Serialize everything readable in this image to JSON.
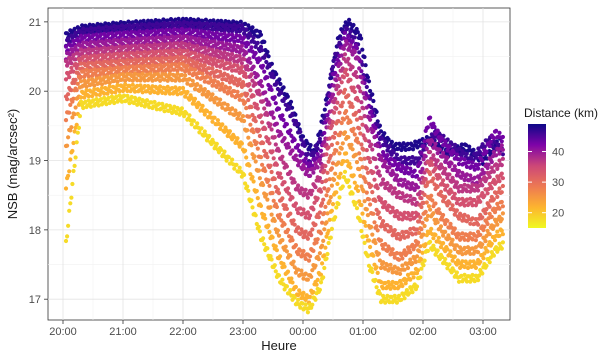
{
  "chart_data": {
    "type": "scatter",
    "xlabel": "Heure",
    "ylabel": "NSB (mag/arcsec²)",
    "x_ticks": [
      "20:00",
      "21:00",
      "22:00",
      "23:00",
      "00:00",
      "01:00",
      "02:00",
      "03:00"
    ],
    "x_tick_hours": [
      20,
      21,
      22,
      23,
      24,
      25,
      26,
      27
    ],
    "xlim_hours": [
      19.75,
      27.45
    ],
    "y_ticks": [
      17,
      18,
      19,
      20,
      21
    ],
    "ylim": [
      16.7,
      21.2
    ],
    "grid": true,
    "legend": {
      "title": "Distance (km)",
      "position": "right",
      "ticks": [
        20,
        30,
        40
      ],
      "range": [
        15,
        49
      ],
      "colormap": "plasma"
    },
    "series_note_hours": "x values in decimal hours after 00:00 of evening day (24 = 00:00, 27 = 03:00)",
    "curves": [
      {
        "distance": 48,
        "points": [
          [
            20.05,
            20.8
          ],
          [
            20.3,
            20.9
          ],
          [
            21,
            20.95
          ],
          [
            22,
            21.0
          ],
          [
            23,
            20.95
          ],
          [
            23.3,
            20.8
          ],
          [
            23.5,
            20.3
          ],
          [
            23.8,
            19.8
          ],
          [
            24.0,
            19.3
          ],
          [
            24.2,
            19.1
          ],
          [
            24.4,
            19.9
          ],
          [
            24.6,
            20.8
          ],
          [
            24.75,
            21.0
          ],
          [
            24.95,
            20.8
          ],
          [
            25.1,
            20.1
          ],
          [
            25.3,
            19.4
          ],
          [
            25.5,
            19.2
          ],
          [
            25.8,
            19.2
          ],
          [
            26.1,
            19.3
          ],
          [
            26.4,
            19.1
          ],
          [
            26.7,
            19.2
          ],
          [
            27.0,
            19.0
          ],
          [
            27.3,
            19.3
          ]
        ]
      },
      {
        "distance": 46,
        "points": [
          [
            20.05,
            20.7
          ],
          [
            20.3,
            20.85
          ],
          [
            21,
            20.9
          ],
          [
            22,
            20.95
          ],
          [
            23,
            20.9
          ],
          [
            23.3,
            20.6
          ],
          [
            23.6,
            20.0
          ],
          [
            23.9,
            19.5
          ],
          [
            24.1,
            19.0
          ],
          [
            24.3,
            19.3
          ],
          [
            24.5,
            20.4
          ],
          [
            24.7,
            20.9
          ],
          [
            24.9,
            20.7
          ],
          [
            25.1,
            19.9
          ],
          [
            25.3,
            19.3
          ],
          [
            25.6,
            19.0
          ],
          [
            25.9,
            19.0
          ],
          [
            26.2,
            19.4
          ],
          [
            26.5,
            19.2
          ],
          [
            26.8,
            19.0
          ],
          [
            27.1,
            19.3
          ],
          [
            27.35,
            19.1
          ]
        ]
      },
      {
        "distance": 43,
        "points": [
          [
            20.05,
            20.6
          ],
          [
            20.3,
            20.75
          ],
          [
            21,
            20.8
          ],
          [
            22,
            20.85
          ],
          [
            23,
            20.75
          ],
          [
            23.3,
            20.4
          ],
          [
            23.6,
            19.7
          ],
          [
            23.9,
            19.2
          ],
          [
            24.1,
            18.9
          ],
          [
            24.3,
            19.1
          ],
          [
            24.5,
            20.2
          ],
          [
            24.7,
            20.8
          ],
          [
            24.9,
            20.6
          ],
          [
            25.1,
            19.8
          ],
          [
            25.3,
            19.1
          ],
          [
            25.6,
            18.9
          ],
          [
            25.9,
            18.8
          ],
          [
            26.1,
            19.6
          ],
          [
            26.3,
            19.3
          ],
          [
            26.6,
            19.0
          ],
          [
            26.9,
            18.9
          ],
          [
            27.2,
            19.4
          ],
          [
            27.35,
            19.3
          ]
        ]
      },
      {
        "distance": 40,
        "points": [
          [
            20.05,
            20.5
          ],
          [
            20.3,
            20.65
          ],
          [
            21,
            20.7
          ],
          [
            22,
            20.75
          ],
          [
            23,
            20.6
          ],
          [
            23.3,
            20.1
          ],
          [
            23.6,
            19.4
          ],
          [
            23.9,
            19.0
          ],
          [
            24.1,
            18.8
          ],
          [
            24.3,
            19.0
          ],
          [
            24.5,
            20.0
          ],
          [
            24.7,
            20.7
          ],
          [
            24.9,
            20.5
          ],
          [
            25.1,
            19.6
          ],
          [
            25.3,
            19.0
          ],
          [
            25.6,
            18.7
          ],
          [
            25.9,
            18.6
          ],
          [
            26.1,
            19.3
          ],
          [
            26.3,
            19.1
          ],
          [
            26.6,
            18.8
          ],
          [
            26.9,
            18.7
          ],
          [
            27.2,
            19.1
          ],
          [
            27.35,
            19.2
          ]
        ]
      },
      {
        "distance": 37,
        "points": [
          [
            20.05,
            20.4
          ],
          [
            20.3,
            20.55
          ],
          [
            21,
            20.6
          ],
          [
            22,
            20.65
          ],
          [
            23,
            20.45
          ],
          [
            23.3,
            19.9
          ],
          [
            23.6,
            19.1
          ],
          [
            23.9,
            18.6
          ],
          [
            24.1,
            18.5
          ],
          [
            24.3,
            18.8
          ],
          [
            24.5,
            19.8
          ],
          [
            24.7,
            20.5
          ],
          [
            24.9,
            20.2
          ],
          [
            25.1,
            19.3
          ],
          [
            25.3,
            18.7
          ],
          [
            25.6,
            18.5
          ],
          [
            25.9,
            18.4
          ],
          [
            26.1,
            19.1
          ],
          [
            26.3,
            18.9
          ],
          [
            26.6,
            18.6
          ],
          [
            26.9,
            18.6
          ],
          [
            27.2,
            18.9
          ],
          [
            27.35,
            19.0
          ]
        ]
      },
      {
        "distance": 34,
        "points": [
          [
            20.05,
            20.2
          ],
          [
            20.3,
            20.45
          ],
          [
            21,
            20.5
          ],
          [
            22,
            20.55
          ],
          [
            23,
            20.3
          ],
          [
            23.3,
            19.6
          ],
          [
            23.6,
            18.8
          ],
          [
            23.9,
            18.3
          ],
          [
            24.1,
            18.2
          ],
          [
            24.3,
            18.6
          ],
          [
            24.5,
            19.6
          ],
          [
            24.7,
            20.3
          ],
          [
            24.9,
            19.9
          ],
          [
            25.1,
            19.0
          ],
          [
            25.3,
            18.4
          ],
          [
            25.6,
            18.2
          ],
          [
            25.9,
            18.2
          ],
          [
            26.1,
            19.0
          ],
          [
            26.3,
            18.7
          ],
          [
            26.6,
            18.4
          ],
          [
            26.9,
            18.4
          ],
          [
            27.2,
            18.7
          ],
          [
            27.35,
            18.8
          ]
        ]
      },
      {
        "distance": 31,
        "points": [
          [
            20.05,
            19.9
          ],
          [
            20.3,
            20.35
          ],
          [
            21,
            20.4
          ],
          [
            22,
            20.45
          ],
          [
            23,
            20.1
          ],
          [
            23.3,
            19.3
          ],
          [
            23.6,
            18.5
          ],
          [
            23.9,
            18.0
          ],
          [
            24.1,
            17.9
          ],
          [
            24.3,
            18.3
          ],
          [
            24.5,
            19.3
          ],
          [
            24.7,
            20.0
          ],
          [
            24.9,
            19.6
          ],
          [
            25.1,
            18.7
          ],
          [
            25.3,
            18.1
          ],
          [
            25.6,
            17.9
          ],
          [
            25.9,
            18.0
          ],
          [
            26.1,
            18.8
          ],
          [
            26.3,
            18.5
          ],
          [
            26.6,
            18.2
          ],
          [
            26.9,
            18.1
          ],
          [
            27.2,
            18.5
          ],
          [
            27.35,
            18.6
          ]
        ]
      },
      {
        "distance": 28,
        "points": [
          [
            20.05,
            19.6
          ],
          [
            20.3,
            20.25
          ],
          [
            21,
            20.3
          ],
          [
            22,
            20.35
          ],
          [
            23,
            19.9
          ],
          [
            23.3,
            19.0
          ],
          [
            23.6,
            18.2
          ],
          [
            23.9,
            17.7
          ],
          [
            24.1,
            17.6
          ],
          [
            24.3,
            18.0
          ],
          [
            24.5,
            19.0
          ],
          [
            24.7,
            19.7
          ],
          [
            24.9,
            19.3
          ],
          [
            25.1,
            18.4
          ],
          [
            25.3,
            17.8
          ],
          [
            25.6,
            17.6
          ],
          [
            25.9,
            17.8
          ],
          [
            26.1,
            18.5
          ],
          [
            26.3,
            18.2
          ],
          [
            26.6,
            17.9
          ],
          [
            26.9,
            17.9
          ],
          [
            27.2,
            18.3
          ],
          [
            27.35,
            18.4
          ]
        ]
      },
      {
        "distance": 25,
        "points": [
          [
            20.05,
            19.2
          ],
          [
            20.3,
            20.1
          ],
          [
            21,
            20.2
          ],
          [
            22,
            20.2
          ],
          [
            23,
            19.6
          ],
          [
            23.3,
            18.7
          ],
          [
            23.6,
            17.9
          ],
          [
            23.9,
            17.4
          ],
          [
            24.1,
            17.3
          ],
          [
            24.3,
            17.7
          ],
          [
            24.5,
            18.7
          ],
          [
            24.7,
            19.4
          ],
          [
            24.9,
            19.0
          ],
          [
            25.1,
            18.1
          ],
          [
            25.3,
            17.5
          ],
          [
            25.6,
            17.4
          ],
          [
            25.9,
            17.6
          ],
          [
            26.1,
            18.3
          ],
          [
            26.3,
            18.0
          ],
          [
            26.6,
            17.7
          ],
          [
            26.9,
            17.7
          ],
          [
            27.2,
            18.1
          ],
          [
            27.35,
            18.2
          ]
        ]
      },
      {
        "distance": 22,
        "points": [
          [
            20.05,
            18.6
          ],
          [
            20.3,
            19.95
          ],
          [
            21,
            20.05
          ],
          [
            22,
            20.0
          ],
          [
            23,
            19.2
          ],
          [
            23.3,
            18.3
          ],
          [
            23.6,
            17.6
          ],
          [
            23.9,
            17.1
          ],
          [
            24.1,
            17.0
          ],
          [
            24.3,
            17.4
          ],
          [
            24.5,
            18.4
          ],
          [
            24.7,
            19.1
          ],
          [
            24.9,
            18.6
          ],
          [
            25.1,
            17.8
          ],
          [
            25.3,
            17.2
          ],
          [
            25.6,
            17.2
          ],
          [
            25.9,
            17.4
          ],
          [
            26.1,
            18.0
          ],
          [
            26.3,
            17.8
          ],
          [
            26.6,
            17.5
          ],
          [
            26.9,
            17.5
          ],
          [
            27.2,
            17.9
          ],
          [
            27.35,
            18.0
          ]
        ]
      },
      {
        "distance": 18,
        "points": [
          [
            20.05,
            17.8
          ],
          [
            20.3,
            19.8
          ],
          [
            21,
            19.9
          ],
          [
            22,
            19.7
          ],
          [
            23,
            18.8
          ],
          [
            23.3,
            17.9
          ],
          [
            23.6,
            17.3
          ],
          [
            23.9,
            16.95
          ],
          [
            24.1,
            16.85
          ],
          [
            24.3,
            17.2
          ],
          [
            24.5,
            18.1
          ],
          [
            24.7,
            18.8
          ],
          [
            24.9,
            18.3
          ],
          [
            25.1,
            17.5
          ],
          [
            25.3,
            17.0
          ],
          [
            25.6,
            17.0
          ],
          [
            25.9,
            17.2
          ],
          [
            26.1,
            17.8
          ],
          [
            26.3,
            17.6
          ],
          [
            26.6,
            17.3
          ],
          [
            26.9,
            17.3
          ],
          [
            27.2,
            17.7
          ],
          [
            27.35,
            17.8
          ]
        ]
      }
    ]
  }
}
